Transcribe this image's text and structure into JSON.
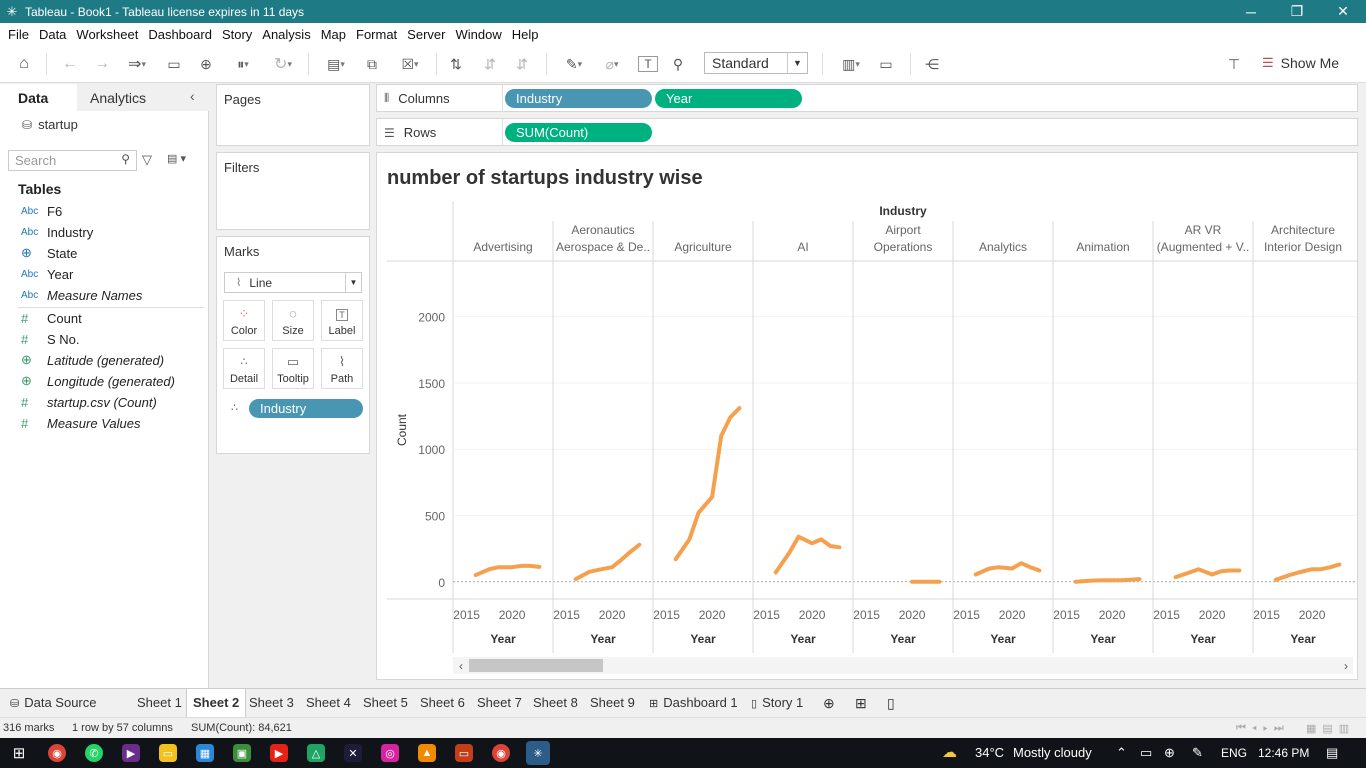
{
  "window": {
    "title": "Tableau - Book1 - Tableau license expires in 11 days",
    "controls": [
      "─",
      "❐",
      "✕"
    ]
  },
  "menu": [
    "File",
    "Data",
    "Worksheet",
    "Dashboard",
    "Story",
    "Analysis",
    "Map",
    "Format",
    "Server",
    "Window",
    "Help"
  ],
  "toolbar": {
    "fit_value": "Standard",
    "show_me_label": "Show Me",
    "icons": [
      "home-icon",
      "undo-icon",
      "redo-icon",
      "replay-icon",
      "save-icon",
      "new-datasource-icon",
      "pause-icon",
      "refresh-icon",
      "new-worksheet-icon",
      "duplicate-icon",
      "clear-icon",
      "swap-icon",
      "sort-asc-icon",
      "sort-desc-icon",
      "highlight-icon",
      "group-icon",
      "label-icon",
      "pin-icon",
      "bar-chart-icon",
      "presentation-icon",
      "share-icon",
      "pin-shelf-icon",
      "show-me-icon"
    ]
  },
  "data_pane": {
    "tabs": {
      "data": "Data",
      "analytics": "Analytics"
    },
    "datasource": "startup",
    "search_placeholder": "Search",
    "tables_heading": "Tables",
    "dimensions": [
      {
        "type": "Abc",
        "label": "F6",
        "icon": "string-icon",
        "italic": false
      },
      {
        "type": "Abc",
        "label": "Industry",
        "icon": "string-icon",
        "italic": false
      },
      {
        "type": "⊕",
        "label": "State",
        "icon": "globe-icon",
        "italic": false
      },
      {
        "type": "Abc",
        "label": "Year",
        "icon": "string-icon",
        "italic": false
      },
      {
        "type": "Abc",
        "label": "Measure Names",
        "icon": "string-icon",
        "italic": true
      }
    ],
    "measures": [
      {
        "type": "#",
        "label": "Count",
        "icon": "number-icon",
        "italic": false
      },
      {
        "type": "#",
        "label": "S No.",
        "icon": "number-icon",
        "italic": false
      },
      {
        "type": "⊕",
        "label": "Latitude (generated)",
        "icon": "globe-icon",
        "italic": true
      },
      {
        "type": "⊕",
        "label": "Longitude (generated)",
        "icon": "globe-icon",
        "italic": true
      },
      {
        "type": "#",
        "label": "startup.csv (Count)",
        "icon": "number-icon",
        "italic": true
      },
      {
        "type": "#",
        "label": "Measure Values",
        "icon": "number-icon",
        "italic": true
      }
    ]
  },
  "cards": {
    "pages": "Pages",
    "filters": "Filters",
    "marks": "Marks",
    "mark_type": "Line",
    "mark_buttons": [
      {
        "label": "Color",
        "icon": "color-icon"
      },
      {
        "label": "Size",
        "icon": "size-icon"
      },
      {
        "label": "Label",
        "icon": "label-icon"
      },
      {
        "label": "Detail",
        "icon": "detail-icon"
      },
      {
        "label": "Tooltip",
        "icon": "tooltip-icon"
      },
      {
        "label": "Path",
        "icon": "path-icon"
      }
    ],
    "detail_pill": "Industry"
  },
  "shelves": {
    "columns_label": "Columns",
    "rows_label": "Rows",
    "columns_pills": [
      "Industry",
      "Year"
    ],
    "rows_pills": [
      "SUM(Count)"
    ]
  },
  "colors": {
    "line": "#f5a04f",
    "pill_dimension": "#4996b2",
    "pill_measure": "#00b180",
    "titlebar": "#1e7b85"
  },
  "chart_data": {
    "type": "line",
    "title": "number of startups industry wise",
    "header": "Industry",
    "xlabel": "Year",
    "ylabel": "Count",
    "ylim": [
      -130,
      2420
    ],
    "yticks": [
      0,
      500,
      1000,
      1500,
      2000
    ],
    "xlim": [
      2013.5,
      2024.5
    ],
    "xticks": [
      2015,
      2020
    ],
    "panes": [
      {
        "name": "Advertising",
        "label_lines": [
          "Advertising"
        ],
        "points": [
          [
            2016,
            50
          ],
          [
            2017.5,
            95
          ],
          [
            2018.5,
            110
          ],
          [
            2020,
            110
          ],
          [
            2021,
            120
          ],
          [
            2022,
            120
          ],
          [
            2023,
            112
          ]
        ]
      },
      {
        "name": "Aeronautics Aerospace & Defense",
        "label_lines": [
          "Aeronautics",
          "Aerospace & De.."
        ],
        "points": [
          [
            2016,
            20
          ],
          [
            2017.5,
            75
          ],
          [
            2018.5,
            90
          ],
          [
            2020,
            110
          ],
          [
            2021,
            165
          ],
          [
            2022,
            225
          ],
          [
            2023,
            280
          ]
        ]
      },
      {
        "name": "Agriculture",
        "label_lines": [
          "Agriculture"
        ],
        "points": [
          [
            2016,
            170
          ],
          [
            2017.5,
            320
          ],
          [
            2018.5,
            520
          ],
          [
            2020,
            640
          ],
          [
            2021,
            1100
          ],
          [
            2022,
            1240
          ],
          [
            2023,
            1310
          ]
        ]
      },
      {
        "name": "AI",
        "label_lines": [
          "AI"
        ],
        "points": [
          [
            2016,
            70
          ],
          [
            2017.5,
            220
          ],
          [
            2018.5,
            340
          ],
          [
            2020,
            290
          ],
          [
            2021,
            320
          ],
          [
            2022,
            270
          ],
          [
            2023,
            260
          ]
        ]
      },
      {
        "name": "Airport Operations",
        "label_lines": [
          "Airport",
          "Operations"
        ],
        "points": [
          [
            2020,
            0
          ],
          [
            2021,
            0
          ],
          [
            2022,
            0
          ],
          [
            2023,
            0
          ]
        ]
      },
      {
        "name": "Analytics",
        "label_lines": [
          "Analytics"
        ],
        "points": [
          [
            2016,
            55
          ],
          [
            2017.5,
            100
          ],
          [
            2018.5,
            110
          ],
          [
            2020,
            100
          ],
          [
            2021,
            140
          ],
          [
            2022,
            110
          ],
          [
            2023,
            85
          ]
        ]
      },
      {
        "name": "Animation",
        "label_lines": [
          "Animation"
        ],
        "points": [
          [
            2016,
            0
          ],
          [
            2017.5,
            8
          ],
          [
            2018.5,
            10
          ],
          [
            2020,
            12
          ],
          [
            2021,
            12
          ],
          [
            2022,
            15
          ],
          [
            2023,
            20
          ]
        ]
      },
      {
        "name": "AR VR (Augmented + Virtual Reality)",
        "label_lines": [
          "AR VR",
          "(Augmented + V.."
        ],
        "points": [
          [
            2016,
            35
          ],
          [
            2017.5,
            70
          ],
          [
            2018.5,
            95
          ],
          [
            2020,
            55
          ],
          [
            2021,
            80
          ],
          [
            2022,
            85
          ],
          [
            2023,
            85
          ]
        ]
      },
      {
        "name": "Architecture Interior Design",
        "label_lines": [
          "Architecture",
          "Interior Design"
        ],
        "points": [
          [
            2016,
            15
          ],
          [
            2017.5,
            50
          ],
          [
            2018.5,
            70
          ],
          [
            2020,
            95
          ],
          [
            2021,
            95
          ],
          [
            2022,
            110
          ],
          [
            2023,
            130
          ]
        ]
      }
    ]
  },
  "sheet_tabs": [
    "Data Source",
    "Sheet 1",
    "Sheet 2",
    "Sheet 3",
    "Sheet 4",
    "Sheet 5",
    "Sheet 6",
    "Sheet 7",
    "Sheet 8",
    "Sheet 9",
    "Dashboard 1",
    "Story 1"
  ],
  "status": {
    "marks": "316 marks",
    "dims": "1 row by 57 columns",
    "sum": "SUM(Count): 84,621"
  },
  "taskbar": {
    "weather_temp": "34°C",
    "weather_text": "Mostly cloudy",
    "lang": "ENG",
    "time": "12:46 PM"
  }
}
